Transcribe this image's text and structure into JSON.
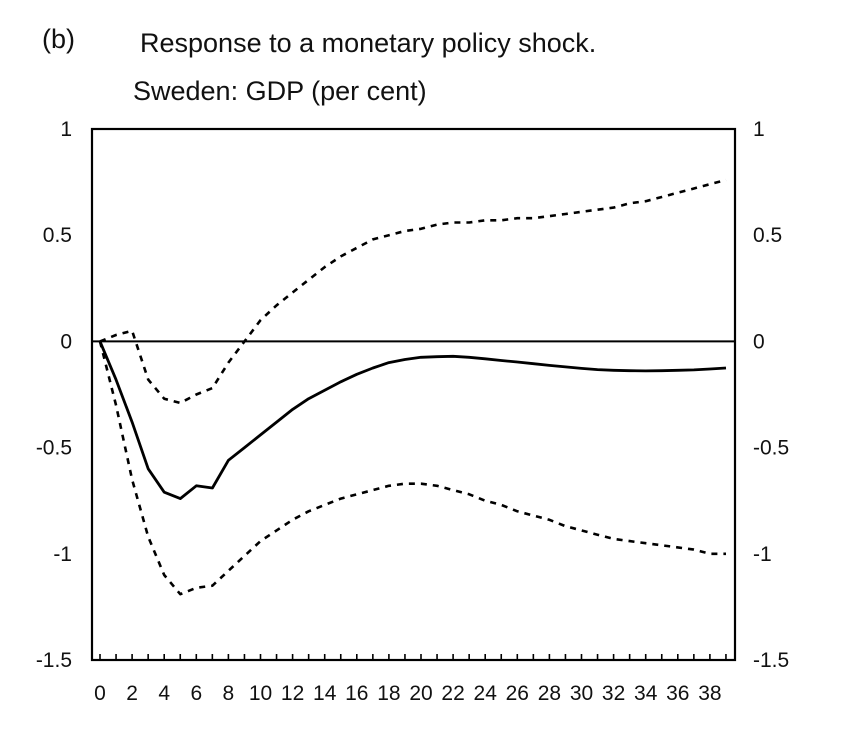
{
  "panel_label": "(b)",
  "chart_data": {
    "type": "line",
    "title": "Response to a monetary policy shock.",
    "subtitle": "Sweden: GDP (per cent)",
    "xlabel": "",
    "ylabel": "",
    "xlim": [
      0,
      40
    ],
    "ylim": [
      -1.5,
      1
    ],
    "x_ticks": [
      0,
      2,
      4,
      6,
      8,
      10,
      12,
      14,
      16,
      18,
      20,
      22,
      24,
      26,
      28,
      30,
      32,
      34,
      36,
      38
    ],
    "y_ticks": [
      1,
      0.5,
      0,
      -0.5,
      -1,
      -1.5
    ],
    "y_tick_labels": [
      "1",
      "0.5",
      "0",
      "-0.5",
      "-1",
      "-1.5"
    ],
    "grid": false,
    "zero_line": true,
    "series": [
      {
        "style": "solid",
        "x": [
          0,
          1,
          2,
          3,
          4,
          5,
          6,
          7,
          8,
          9,
          10,
          11,
          12,
          13,
          14,
          15,
          16,
          17,
          18,
          19,
          20,
          21,
          22,
          23,
          24,
          25,
          26,
          27,
          28,
          29,
          30,
          31,
          32,
          33,
          34,
          35,
          36,
          37,
          38,
          39
        ],
        "y": [
          0,
          -0.18,
          -0.38,
          -0.6,
          -0.71,
          -0.74,
          -0.68,
          -0.69,
          -0.56,
          -0.5,
          -0.44,
          -0.38,
          -0.32,
          -0.27,
          -0.23,
          -0.19,
          -0.155,
          -0.125,
          -0.1,
          -0.085,
          -0.075,
          -0.072,
          -0.07,
          -0.075,
          -0.082,
          -0.09,
          -0.097,
          -0.105,
          -0.113,
          -0.12,
          -0.127,
          -0.133,
          -0.136,
          -0.138,
          -0.139,
          -0.138,
          -0.136,
          -0.134,
          -0.13,
          -0.125
        ]
      },
      {
        "style": "dotted",
        "x": [
          0,
          1,
          2,
          3,
          4,
          5,
          6,
          7,
          8,
          9,
          10,
          11,
          12,
          13,
          14,
          15,
          16,
          17,
          18,
          19,
          20,
          21,
          22,
          23,
          24,
          25,
          26,
          27,
          28,
          29,
          30,
          31,
          32,
          33,
          34,
          35,
          36,
          37,
          38,
          39
        ],
        "y": [
          0,
          0.03,
          0.05,
          -0.18,
          -0.27,
          -0.29,
          -0.25,
          -0.22,
          -0.1,
          0.0,
          0.1,
          0.17,
          0.23,
          0.29,
          0.35,
          0.4,
          0.44,
          0.48,
          0.5,
          0.52,
          0.53,
          0.55,
          0.56,
          0.56,
          0.57,
          0.57,
          0.58,
          0.58,
          0.59,
          0.6,
          0.61,
          0.62,
          0.63,
          0.65,
          0.66,
          0.68,
          0.7,
          0.72,
          0.74,
          0.76
        ]
      },
      {
        "style": "dotted",
        "x": [
          0,
          1,
          2,
          3,
          4,
          5,
          6,
          7,
          8,
          9,
          10,
          11,
          12,
          13,
          14,
          15,
          16,
          17,
          18,
          19,
          20,
          21,
          22,
          23,
          24,
          25,
          26,
          27,
          28,
          29,
          30,
          31,
          32,
          33,
          34,
          35,
          36,
          37,
          38,
          39
        ],
        "y": [
          0,
          -0.3,
          -0.65,
          -0.92,
          -1.1,
          -1.19,
          -1.16,
          -1.15,
          -1.08,
          -1.01,
          -0.94,
          -0.89,
          -0.84,
          -0.8,
          -0.77,
          -0.74,
          -0.72,
          -0.7,
          -0.68,
          -0.67,
          -0.67,
          -0.68,
          -0.7,
          -0.72,
          -0.75,
          -0.77,
          -0.8,
          -0.82,
          -0.84,
          -0.87,
          -0.89,
          -0.91,
          -0.93,
          -0.94,
          -0.95,
          -0.96,
          -0.97,
          -0.98,
          -1.0,
          -1.0
        ]
      }
    ]
  }
}
